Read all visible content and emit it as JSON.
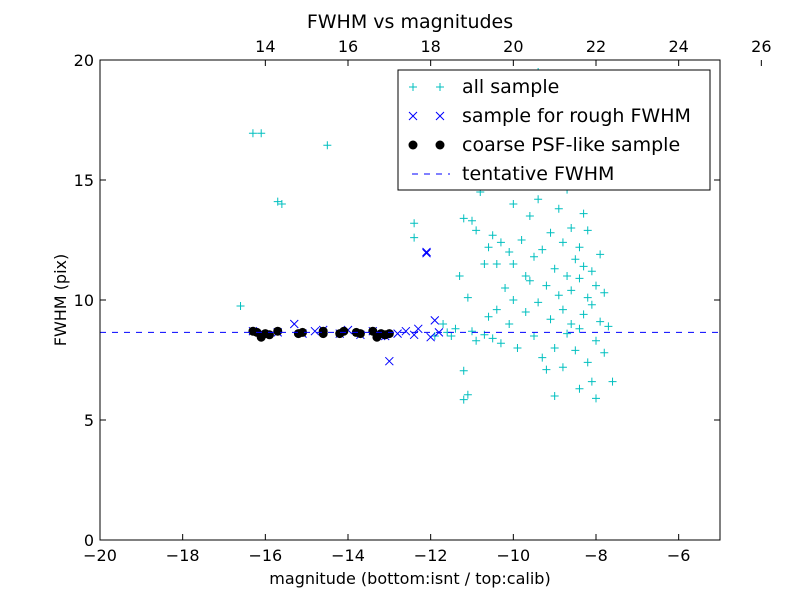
{
  "chart_data": {
    "type": "scatter",
    "title": "FWHM vs magnitudes",
    "xlabel": "magnitude (bottom:isnt / top:calib)",
    "ylabel": "FWHM (pix)",
    "xlim": [
      -20,
      -5
    ],
    "ylim": [
      0,
      20
    ],
    "x_ticks": [
      -20,
      -18,
      -16,
      -14,
      -12,
      -10,
      -8,
      -6
    ],
    "x_tick_labels": [
      "−20",
      "−18",
      "−16",
      "−14",
      "−12",
      "−10",
      "−8",
      "−6"
    ],
    "y_ticks": [
      0,
      5,
      10,
      15,
      20
    ],
    "y_tick_labels": [
      "0",
      "5",
      "10",
      "15",
      "20"
    ],
    "top_axis": {
      "ticks": [
        14,
        16,
        18,
        20,
        22,
        24,
        26
      ],
      "tick_labels": [
        "14",
        "16",
        "18",
        "20",
        "22",
        "24",
        "26"
      ],
      "offset": 30
    },
    "grid": false,
    "legend_position": "top-right",
    "series": [
      {
        "name": "all sample",
        "marker": "plus",
        "color": "#00bfbf",
        "points": [
          [
            -16.6,
            9.75
          ],
          [
            -16.3,
            16.95
          ],
          [
            -16.1,
            16.95
          ],
          [
            -15.7,
            14.1
          ],
          [
            -15.6,
            14.0
          ],
          [
            -14.5,
            16.45
          ],
          [
            -12.4,
            12.6
          ],
          [
            -12.4,
            13.2
          ],
          [
            -11.9,
            8.5
          ],
          [
            -11.7,
            9.0
          ],
          [
            -11.6,
            8.65
          ],
          [
            -11.4,
            8.8
          ],
          [
            -11.3,
            11.0
          ],
          [
            -11.2,
            13.4
          ],
          [
            -11.2,
            7.05
          ],
          [
            -11.2,
            5.85
          ],
          [
            -11.1,
            6.05
          ],
          [
            -11.1,
            10.1
          ],
          [
            -11.0,
            13.3
          ],
          [
            -10.9,
            12.9
          ],
          [
            -10.8,
            14.5
          ],
          [
            -10.7,
            11.5
          ],
          [
            -10.7,
            8.55
          ],
          [
            -10.6,
            12.2
          ],
          [
            -10.5,
            12.7
          ],
          [
            -10.5,
            8.4
          ],
          [
            -10.4,
            11.5
          ],
          [
            -10.4,
            9.6
          ],
          [
            -10.3,
            12.4
          ],
          [
            -10.3,
            8.2
          ],
          [
            -10.2,
            10.5
          ],
          [
            -10.1,
            12.0
          ],
          [
            -10.1,
            9.0
          ],
          [
            -10.0,
            14.0
          ],
          [
            -10.0,
            11.5
          ],
          [
            -10.0,
            10.0
          ],
          [
            -9.9,
            8.0
          ],
          [
            -9.8,
            15.0
          ],
          [
            -9.8,
            12.5
          ],
          [
            -9.7,
            11.0
          ],
          [
            -9.7,
            9.5
          ],
          [
            -9.6,
            13.5
          ],
          [
            -9.6,
            10.8
          ],
          [
            -9.5,
            8.5
          ],
          [
            -9.5,
            11.8
          ],
          [
            -9.4,
            14.2
          ],
          [
            -9.4,
            9.9
          ],
          [
            -9.3,
            12.1
          ],
          [
            -9.3,
            7.6
          ],
          [
            -9.2,
            10.6
          ],
          [
            -9.2,
            15.5
          ],
          [
            -9.1,
            9.2
          ],
          [
            -9.1,
            12.8
          ],
          [
            -9.0,
            11.3
          ],
          [
            -9.0,
            8.0
          ],
          [
            -8.9,
            13.8
          ],
          [
            -8.9,
            10.2
          ],
          [
            -8.8,
            9.6
          ],
          [
            -8.8,
            12.4
          ],
          [
            -8.8,
            7.2
          ],
          [
            -8.7,
            11.0
          ],
          [
            -8.7,
            14.6
          ],
          [
            -8.7,
            8.6
          ],
          [
            -8.6,
            10.4
          ],
          [
            -8.6,
            13.0
          ],
          [
            -8.6,
            9.0
          ],
          [
            -8.5,
            11.7
          ],
          [
            -8.5,
            7.9
          ],
          [
            -8.5,
            15.2
          ],
          [
            -8.4,
            10.9
          ],
          [
            -8.4,
            12.2
          ],
          [
            -8.4,
            8.8
          ],
          [
            -8.3,
            11.4
          ],
          [
            -8.3,
            9.4
          ],
          [
            -8.3,
            13.6
          ],
          [
            -8.2,
            10.1
          ],
          [
            -8.2,
            12.9
          ],
          [
            -8.2,
            7.4
          ],
          [
            -8.1,
            11.2
          ],
          [
            -8.1,
            9.8
          ],
          [
            -8.1,
            6.6
          ],
          [
            -8.0,
            10.6
          ],
          [
            -8.0,
            8.3
          ],
          [
            -8.0,
            5.9
          ],
          [
            -7.9,
            9.1
          ],
          [
            -7.9,
            11.9
          ],
          [
            -7.8,
            7.8
          ],
          [
            -7.8,
            10.3
          ],
          [
            -7.7,
            8.9
          ],
          [
            -7.6,
            6.6
          ],
          [
            -8.4,
            6.3
          ],
          [
            -9.0,
            6.0
          ],
          [
            -9.2,
            7.1
          ],
          [
            -10.6,
            9.3
          ],
          [
            -10.9,
            8.3
          ],
          [
            -11.5,
            8.5
          ],
          [
            -11.0,
            8.7
          ],
          [
            -9.9,
            16.5
          ],
          [
            -9.6,
            17.0
          ],
          [
            -9.3,
            16.1
          ],
          [
            -9.0,
            17.5
          ],
          [
            -8.9,
            16.8
          ],
          [
            -8.6,
            17.9
          ],
          [
            -8.5,
            16.3
          ],
          [
            -8.2,
            17.2
          ],
          [
            -8.0,
            16.0
          ],
          [
            -9.2,
            18.5
          ],
          [
            -8.7,
            19.0
          ],
          [
            -9.5,
            18.0
          ],
          [
            -10.2,
            16.0
          ],
          [
            -10.5,
            15.5
          ],
          [
            -9.4,
            19.5
          ],
          [
            -8.9,
            18.2
          ],
          [
            -8.3,
            18.6
          ]
        ]
      },
      {
        "name": "sample for rough FWHM",
        "marker": "x",
        "color": "#0000ff",
        "points": [
          [
            -16.3,
            8.7
          ],
          [
            -16.0,
            8.55
          ],
          [
            -15.7,
            8.65
          ],
          [
            -15.3,
            9.0
          ],
          [
            -15.1,
            8.6
          ],
          [
            -14.8,
            8.7
          ],
          [
            -14.6,
            8.75
          ],
          [
            -14.2,
            8.6
          ],
          [
            -14.0,
            8.75
          ],
          [
            -13.7,
            8.55
          ],
          [
            -13.4,
            8.7
          ],
          [
            -13.1,
            8.5
          ],
          [
            -13.0,
            7.45
          ],
          [
            -12.8,
            8.6
          ],
          [
            -12.6,
            8.7
          ],
          [
            -12.4,
            8.55
          ],
          [
            -12.3,
            8.8
          ],
          [
            -12.1,
            12.0
          ],
          [
            -12.1,
            11.95
          ],
          [
            -12.0,
            8.45
          ],
          [
            -11.9,
            9.15
          ],
          [
            -11.8,
            8.65
          ],
          [
            -13.2,
            8.5
          ]
        ]
      },
      {
        "name": "coarse PSF-like sample",
        "marker": "circle",
        "color": "#000000",
        "points": [
          [
            -16.3,
            8.7
          ],
          [
            -16.2,
            8.65
          ],
          [
            -16.1,
            8.45
          ],
          [
            -16.0,
            8.6
          ],
          [
            -15.9,
            8.55
          ],
          [
            -15.7,
            8.7
          ],
          [
            -15.2,
            8.6
          ],
          [
            -15.1,
            8.65
          ],
          [
            -14.6,
            8.7
          ],
          [
            -14.6,
            8.6
          ],
          [
            -14.2,
            8.6
          ],
          [
            -14.1,
            8.7
          ],
          [
            -13.8,
            8.65
          ],
          [
            -13.7,
            8.6
          ],
          [
            -13.4,
            8.7
          ],
          [
            -13.3,
            8.45
          ],
          [
            -13.2,
            8.6
          ],
          [
            -13.1,
            8.55
          ],
          [
            -13.0,
            8.6
          ]
        ]
      },
      {
        "name": "tentative FWHM",
        "type": "hline",
        "style": "dashed",
        "color": "#0000ff",
        "value": 8.65
      }
    ]
  }
}
